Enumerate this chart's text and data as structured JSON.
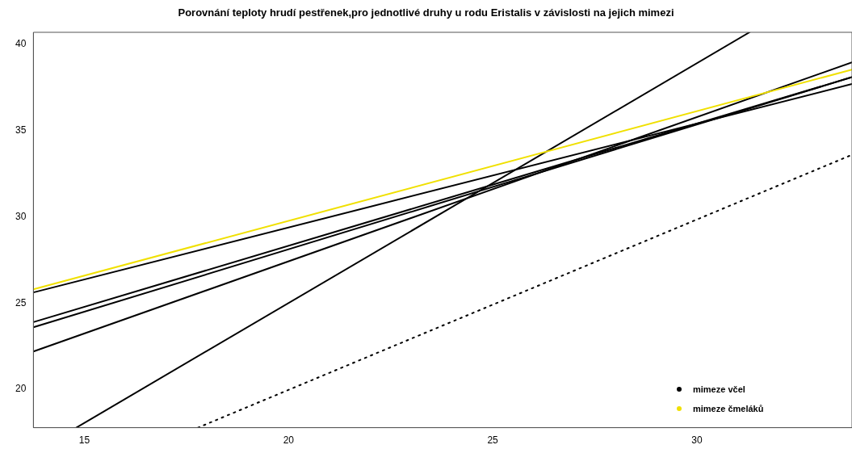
{
  "chart_data": {
    "type": "line",
    "title": "Porovnání teploty hrudí pestřenek,pro jednotlivé druhy u rodu Eristalis v závislosti na jejich mimezi",
    "xlim": [
      13.75,
      33.8
    ],
    "ylim": [
      17.78,
      40.7
    ],
    "xticks": [
      15,
      20,
      25,
      30
    ],
    "yticks": [
      20,
      25,
      30,
      35,
      40
    ],
    "grid": false,
    "legend": "bottom right",
    "marker": "none",
    "series": [
      {
        "name": "mimeze včel",
        "color": "#000000",
        "x": [
          13.75,
          33.8
        ],
        "values": [
          25.62,
          37.7
        ]
      },
      {
        "name": "mimeze čmeláků",
        "color": "#f0e000",
        "x": [
          13.75,
          33.8
        ],
        "values": [
          25.8,
          38.54
        ]
      },
      {
        "color": "#000000",
        "x": [
          13.75,
          33.8
        ],
        "values": [
          23.9,
          38.1
        ]
      },
      {
        "color": "#000000",
        "x": [
          13.75,
          33.8
        ],
        "values": [
          23.6,
          38.1
        ]
      },
      {
        "color": "#000000",
        "x": [
          13.75,
          33.8
        ],
        "values": [
          22.2,
          38.96
        ]
      },
      {
        "color": "#000000",
        "x": [
          14.8,
          31.29
        ],
        "values": [
          17.78,
          40.7
        ]
      },
      {
        "color": "#000000",
        "x": [
          17.78,
          33.8
        ],
        "values": [
          17.78,
          33.6
        ],
        "line_style": "dotted"
      }
    ]
  }
}
